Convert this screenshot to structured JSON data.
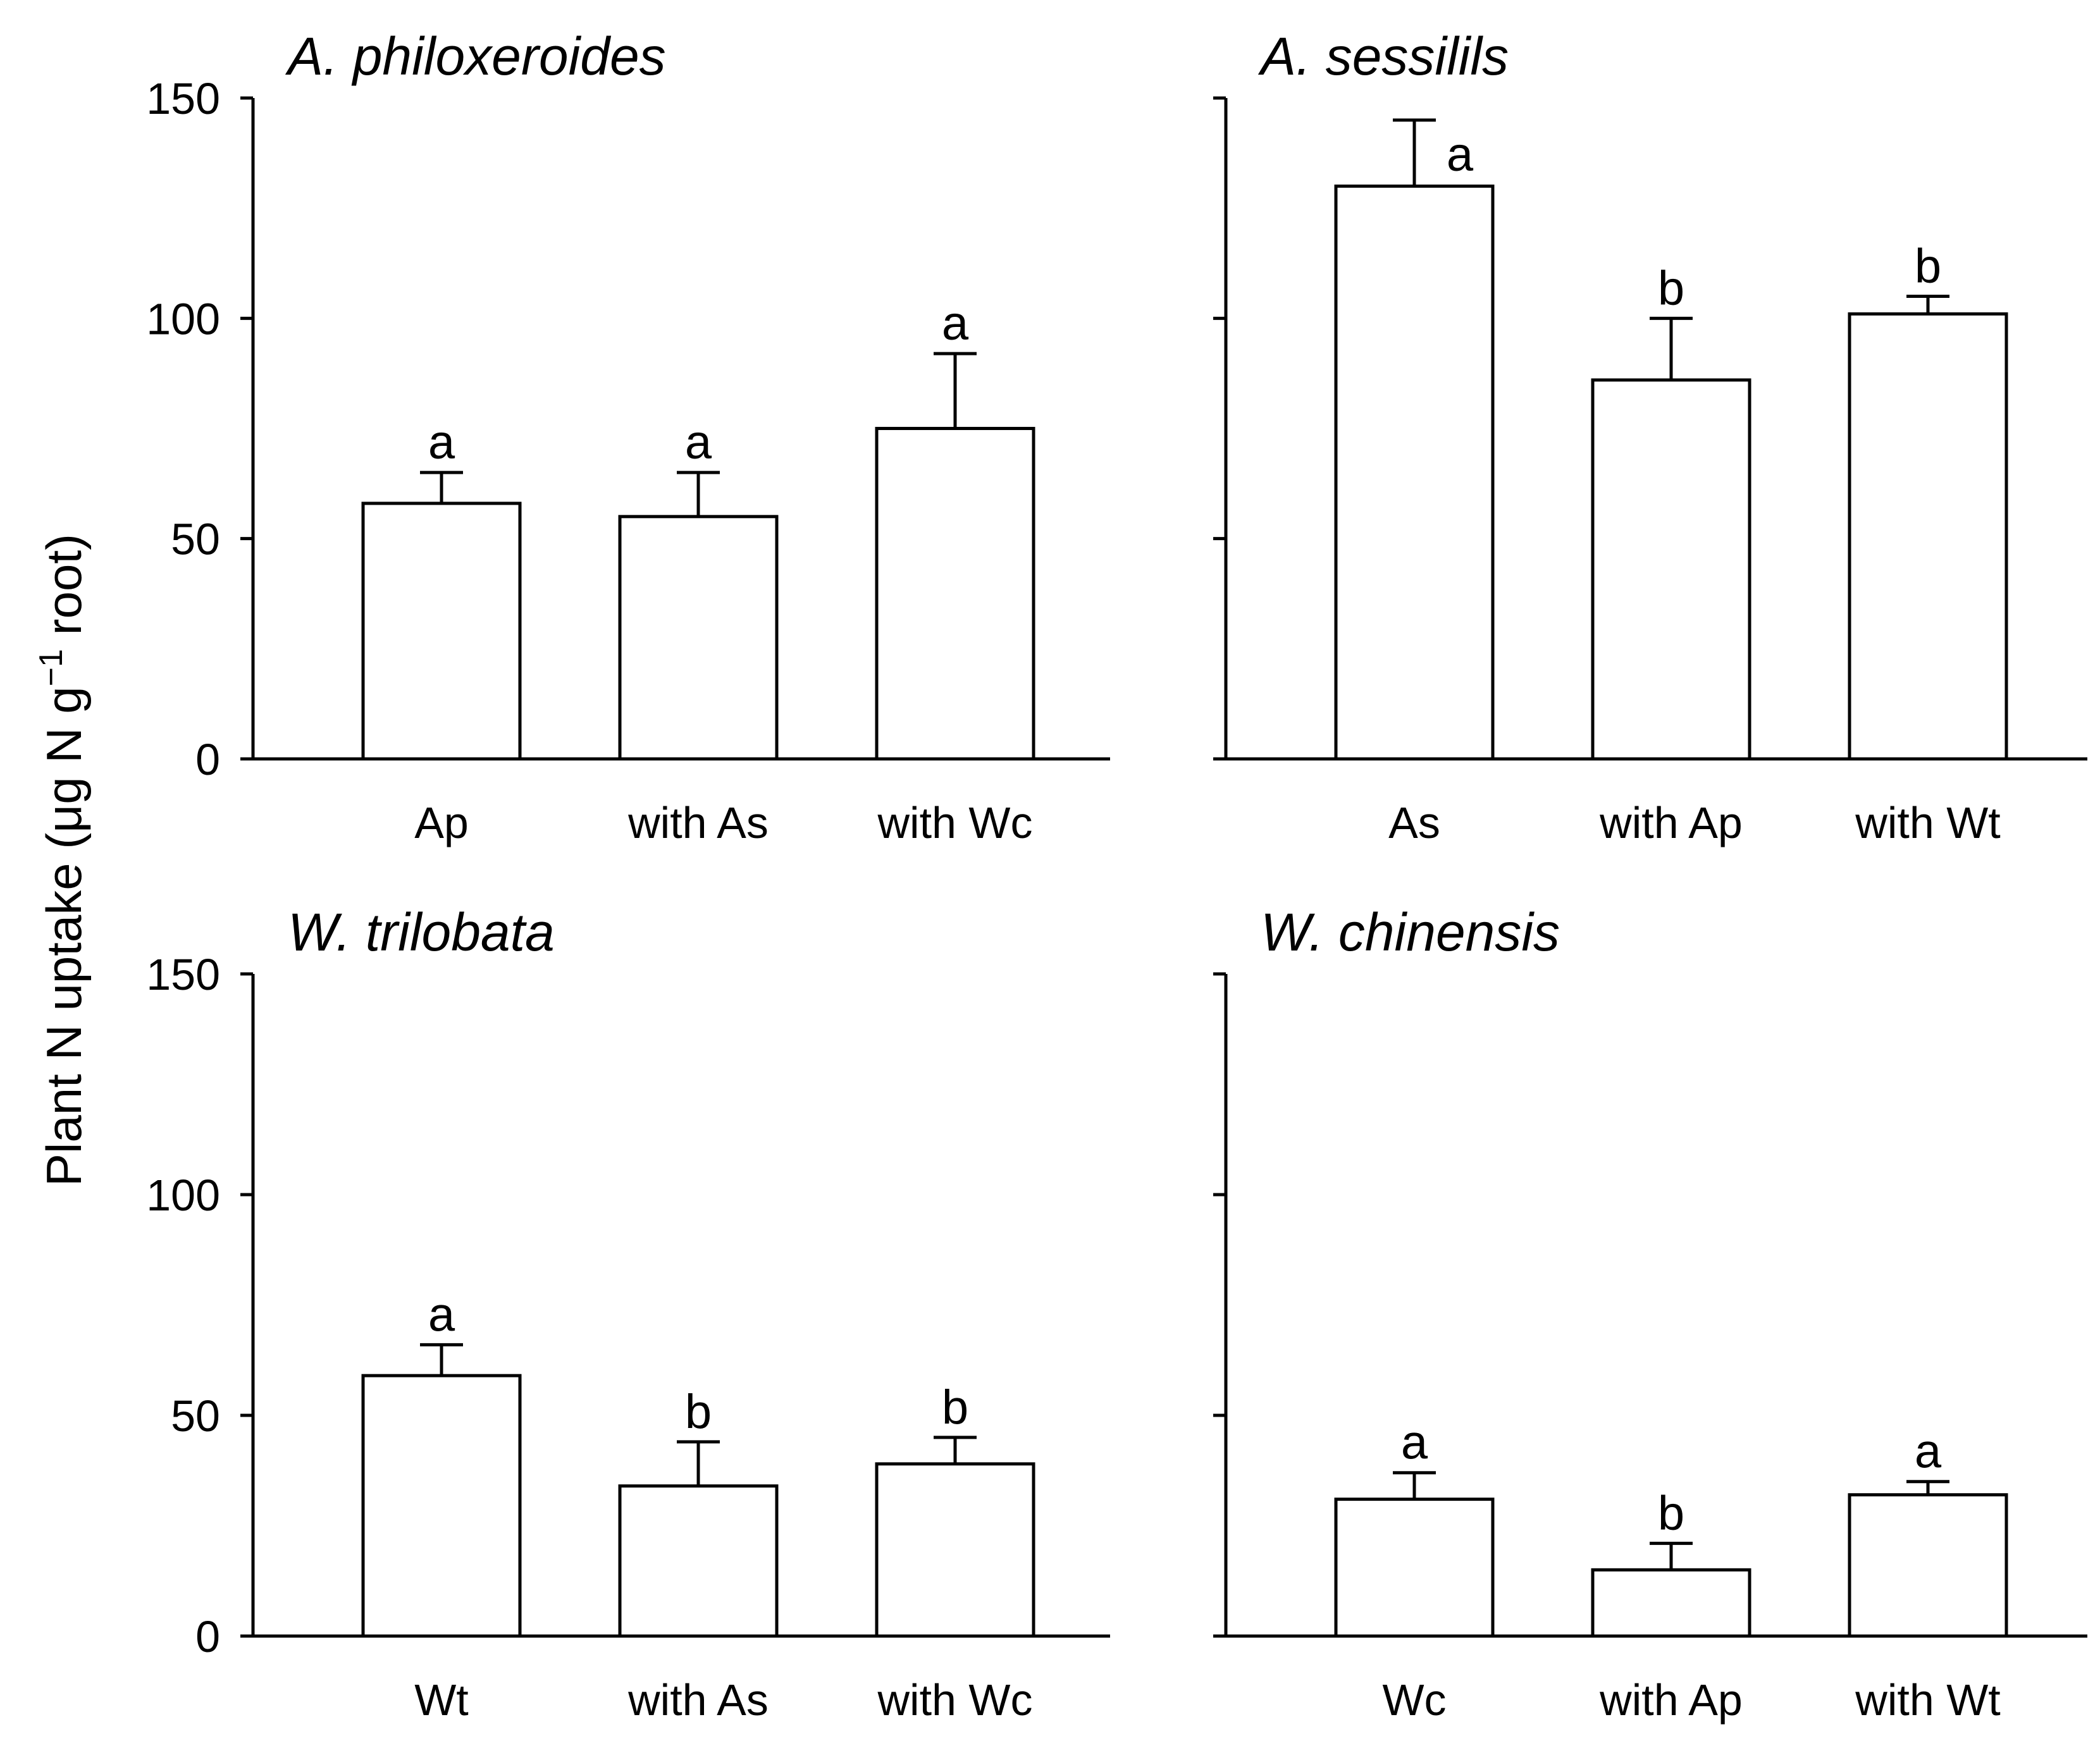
{
  "figure": {
    "ylabel": {
      "main": "Plant N uptake (μg N g",
      "sup": "−1",
      "end": " root)"
    }
  },
  "chart_data": [
    {
      "type": "bar",
      "title": "A. philoxeroides",
      "categories": [
        "Ap",
        "with As",
        "with Wc"
      ],
      "values": [
        58,
        55,
        75
      ],
      "errors": [
        7,
        10,
        17
      ],
      "significance": [
        "a",
        "a",
        "a"
      ],
      "ylim": [
        0,
        150
      ],
      "yticks": [
        0,
        50,
        100,
        150
      ],
      "ytick_labels_shown": true,
      "xlabel": "",
      "ylabel": "Plant N uptake (μg N g−1 root)"
    },
    {
      "type": "bar",
      "title": "A. sessilils",
      "categories": [
        "As",
        "with Ap",
        "with Wt"
      ],
      "values": [
        130,
        86,
        101
      ],
      "errors": [
        15,
        14,
        4
      ],
      "significance": [
        "a",
        "b",
        "b"
      ],
      "ylim": [
        0,
        150
      ],
      "yticks": [
        0,
        50,
        100,
        150
      ],
      "ytick_labels_shown": false,
      "xlabel": "",
      "ylabel": ""
    },
    {
      "type": "bar",
      "title": "W. trilobata",
      "categories": [
        "Wt",
        "with As",
        "with Wc"
      ],
      "values": [
        59,
        34,
        39
      ],
      "errors": [
        7,
        10,
        6
      ],
      "significance": [
        "a",
        "b",
        "b"
      ],
      "ylim": [
        0,
        150
      ],
      "yticks": [
        0,
        50,
        100,
        150
      ],
      "ytick_labels_shown": true,
      "xlabel": "",
      "ylabel": ""
    },
    {
      "type": "bar",
      "title": "W. chinensis",
      "categories": [
        "Wc",
        "with Ap",
        "with Wt"
      ],
      "values": [
        31,
        15,
        32
      ],
      "errors": [
        6,
        6,
        3
      ],
      "significance": [
        "a",
        "b",
        "a"
      ],
      "ylim": [
        0,
        150
      ],
      "yticks": [
        0,
        50,
        100,
        150
      ],
      "ytick_labels_shown": false,
      "xlabel": "",
      "ylabel": ""
    }
  ]
}
